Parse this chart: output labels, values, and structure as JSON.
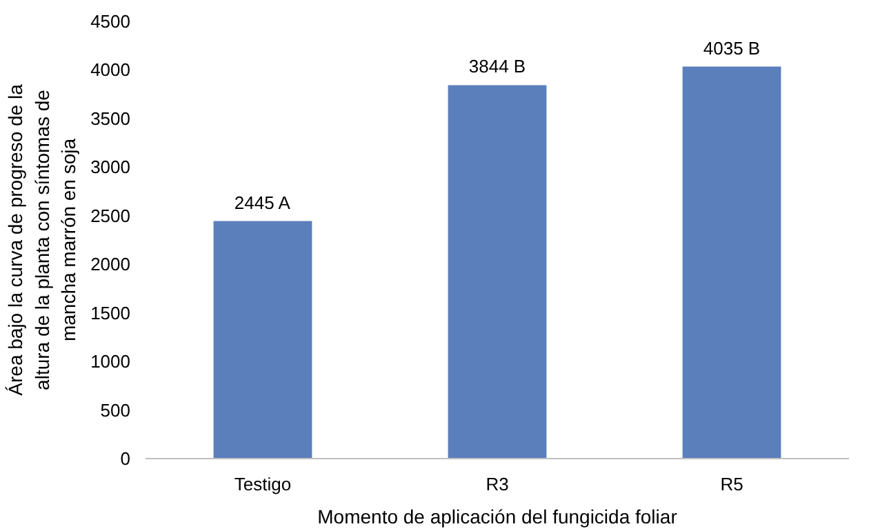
{
  "chart_data": {
    "type": "bar",
    "categories": [
      "Testigo",
      "R3",
      "R5"
    ],
    "values": [
      2445,
      3844,
      4035
    ],
    "value_labels": [
      "2445 A",
      "3844 B",
      "4035 B"
    ],
    "color": "#5b7fbb",
    "xlabel": "Momento de aplicación del fungicida foliar",
    "ylabel": "Área bajo la curva de progreso de la altura de la planta con síntomas de mancha marrón en soja",
    "ylim": [
      0,
      4500
    ],
    "yticks": [
      0,
      500,
      1000,
      1500,
      2000,
      2500,
      3000,
      3500,
      4000,
      4500
    ],
    "grid": false
  }
}
